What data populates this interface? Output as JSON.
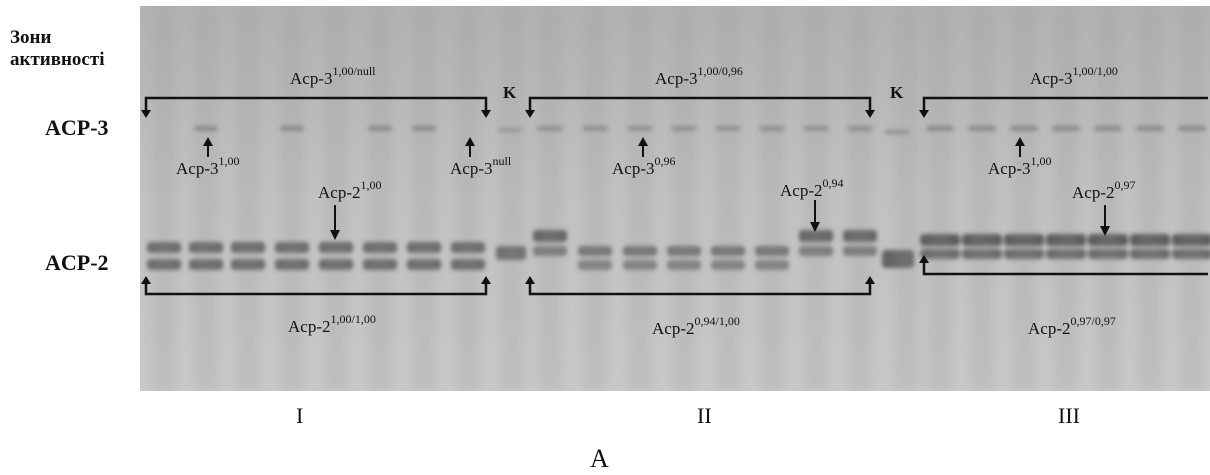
{
  "left": {
    "zones_line1": "Зони",
    "zones_line2": "активності",
    "acp3": "ACP-3",
    "acp2": "ACP-2"
  },
  "groups": [
    {
      "roman": "I",
      "top_base": "Acp-3",
      "top_sup": "1,00/null",
      "bottom_base": "Acp-2",
      "bottom_sup": "1,00/1,00"
    },
    {
      "roman": "II",
      "top_base": "Acp-3",
      "top_sup": "1,00/0,96",
      "bottom_base": "Acp-2",
      "bottom_sup": "0,94/1,00"
    },
    {
      "roman": "III",
      "top_base": "Acp-3",
      "top_sup": "1,00/1,00",
      "bottom_base": "Acp-2",
      "bottom_sup": "0,97/0,97"
    }
  ],
  "control_label": "K",
  "arrows": [
    {
      "base": "Acp-3",
      "sup": "1,00"
    },
    {
      "base": "Acp-2",
      "sup": "1,00"
    },
    {
      "base": "Acp-3",
      "sup": "null"
    },
    {
      "base": "Acp-3",
      "sup": "0,96"
    },
    {
      "base": "Acp-2",
      "sup": "0,94"
    },
    {
      "base": "Acp-3",
      "sup": "1,00"
    },
    {
      "base": "Acp-2",
      "sup": "0,97"
    }
  ],
  "panel_label": "A",
  "colors": {
    "gel_background": "#bcbcbc",
    "band_dark": "#4a4a4a",
    "bracket": "#111111"
  }
}
